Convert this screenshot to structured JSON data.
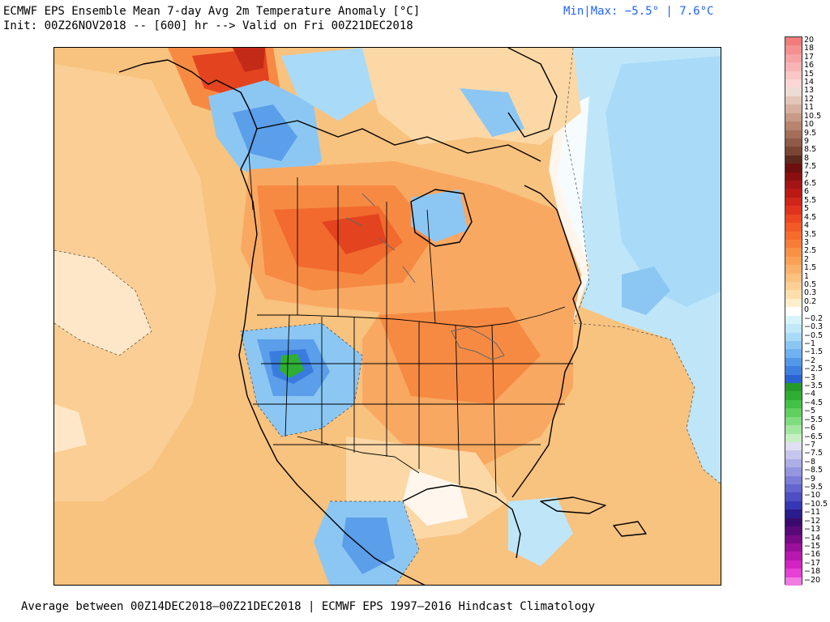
{
  "header": {
    "title": "ECMWF EPS Ensemble Mean 7-day Avg 2m Temperature Anomaly [°C]",
    "init_line": "Init: 00Z26NOV2018 -- [600] hr --> Valid on Fri 00Z21DEC2018",
    "minmax": "Min|Max: −5.5° | 7.6°C"
  },
  "footer": {
    "text": "Average between 00Z14DEC2018–00Z21DEC2018 | ECMWF EPS 1997–2016 Hindcast Climatology"
  },
  "colorbar": {
    "units": "°C",
    "levels": [
      {
        "label": "20",
        "color": "#f07c7c"
      },
      {
        "label": "18",
        "color": "#f49090"
      },
      {
        "label": "17",
        "color": "#f6a3a3"
      },
      {
        "label": "16",
        "color": "#f8b4b4"
      },
      {
        "label": "15",
        "color": "#fac6c6"
      },
      {
        "label": "14",
        "color": "#fcd6d6"
      },
      {
        "label": "13",
        "color": "#eddcd4"
      },
      {
        "label": "12",
        "color": "#e2c7b8"
      },
      {
        "label": "11",
        "color": "#d5b09e"
      },
      {
        "label": "10.5",
        "color": "#c69a86"
      },
      {
        "label": "10",
        "color": "#b7846f"
      },
      {
        "label": "9.5",
        "color": "#a46e59"
      },
      {
        "label": "9",
        "color": "#8f5a46"
      },
      {
        "label": "8.5",
        "color": "#7b4534"
      },
      {
        "label": "8",
        "color": "#5c2a1c"
      },
      {
        "label": "7.5",
        "color": "#6e0f0f"
      },
      {
        "label": "7",
        "color": "#8a1010"
      },
      {
        "label": "6.5",
        "color": "#a31414"
      },
      {
        "label": "6",
        "color": "#bb1a14"
      },
      {
        "label": "5.5",
        "color": "#d0251a"
      },
      {
        "label": "5",
        "color": "#e0341f"
      },
      {
        "label": "4.5",
        "color": "#ec4723"
      },
      {
        "label": "4",
        "color": "#f35a27"
      },
      {
        "label": "3.5",
        "color": "#f66c2d"
      },
      {
        "label": "3",
        "color": "#f77e37"
      },
      {
        "label": "2.5",
        "color": "#f89146"
      },
      {
        "label": "2",
        "color": "#f9a257"
      },
      {
        "label": "1.5",
        "color": "#fab26a"
      },
      {
        "label": "1",
        "color": "#fbc17e"
      },
      {
        "label": "0.5",
        "color": "#fcd095"
      },
      {
        "label": "0.3",
        "color": "#fddfae"
      },
      {
        "label": "0.2",
        "color": "#feeecb"
      },
      {
        "label": "0",
        "color": "#ffffff"
      },
      {
        "label": "−0.2",
        "color": "#d8f4fb"
      },
      {
        "label": "−0.3",
        "color": "#c2e9fa"
      },
      {
        "label": "−0.5",
        "color": "#a9dbf8"
      },
      {
        "label": "−1",
        "color": "#8cc7f4"
      },
      {
        "label": "−1.5",
        "color": "#6fb2ef"
      },
      {
        "label": "−2",
        "color": "#5399e8"
      },
      {
        "label": "−2.5",
        "color": "#3d80e0"
      },
      {
        "label": "−3",
        "color": "#2c63d4"
      },
      {
        "label": "−3.5",
        "color": "#239a2a"
      },
      {
        "label": "−4",
        "color": "#2fae33"
      },
      {
        "label": "−4.5",
        "color": "#42c146"
      },
      {
        "label": "−5",
        "color": "#5fd05f"
      },
      {
        "label": "−5.5",
        "color": "#80dc7e"
      },
      {
        "label": "−6",
        "color": "#a3e6a0"
      },
      {
        "label": "−6.5",
        "color": "#c6efc3"
      },
      {
        "label": "−7",
        "color": "#e0e0f2"
      },
      {
        "label": "−7.5",
        "color": "#c6c6ec"
      },
      {
        "label": "−8",
        "color": "#adaee6"
      },
      {
        "label": "−8.5",
        "color": "#9596df"
      },
      {
        "label": "−9",
        "color": "#7c7dd6"
      },
      {
        "label": "−9.5",
        "color": "#6466cd"
      },
      {
        "label": "−10",
        "color": "#4d4fc2"
      },
      {
        "label": "−10.5",
        "color": "#3637b4"
      },
      {
        "label": "−11",
        "color": "#2a1c8c"
      },
      {
        "label": "−12",
        "color": "#3c0a6e"
      },
      {
        "label": "−13",
        "color": "#5a0a78"
      },
      {
        "label": "−14",
        "color": "#7a0a88"
      },
      {
        "label": "−15",
        "color": "#9a109a"
      },
      {
        "label": "−16",
        "color": "#b818ae"
      },
      {
        "label": "−17",
        "color": "#d224c2"
      },
      {
        "label": "−18",
        "color": "#e640d4"
      },
      {
        "label": "−20",
        "color": "#f07ae4"
      }
    ]
  },
  "map": {
    "domain": "North America",
    "colors": {
      "background_warm": "#f8c27f",
      "light_warm": "#fcd8a6",
      "warm_mid": "#f9a862",
      "warm_strong": "#f68a43",
      "warm_hot": "#f26a2e",
      "warm_peak": "#e3431f",
      "warm_max": "#c42a18",
      "neutral": "#ffffff",
      "cool_light": "#bfe6f8",
      "cool_mid": "#8cc7f4",
      "cool_strong": "#5b9ee9",
      "cool_deep": "#3a7be0",
      "green_min": "#2fae33",
      "boundary": "#000000",
      "lakes": "#666666"
    }
  }
}
